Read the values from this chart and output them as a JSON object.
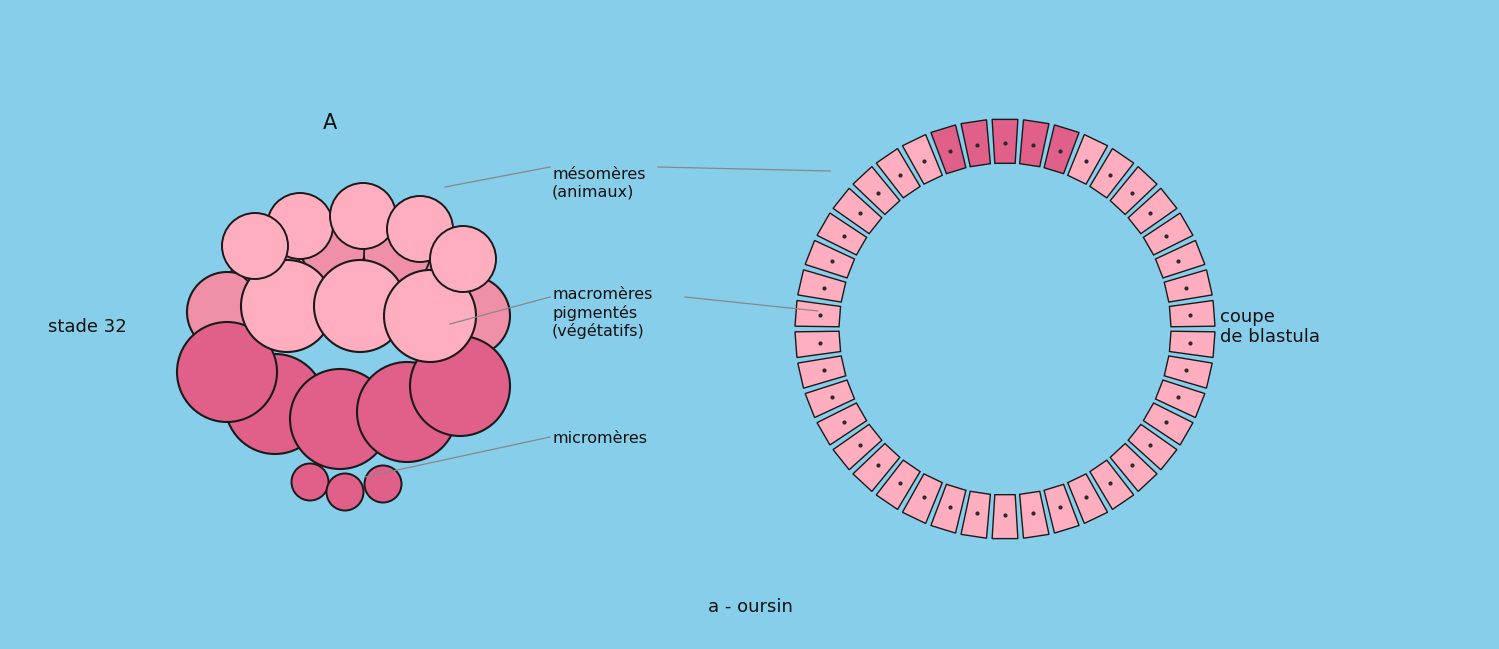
{
  "bg_color": "#87CEEB",
  "light_pink": "#FFAEC0",
  "mid_pink": "#F090A8",
  "dark_pink": "#E0608A",
  "cell_light": "#FFB8CC",
  "cell_dark": "#E87898",
  "outline_color": "#1a1a1a",
  "line_color": "#888888",
  "text_color": "#111111",
  "title_A": "A",
  "label_stade": "stade 32",
  "label_coupe": "coupe\nde blastula",
  "label_oursin": "a - oursin",
  "label_mesomeres": "mésomères\n(animaux)",
  "label_macromeres": "macromères\npigmentés\n(végétatifs)",
  "label_micromeres": "micromères",
  "fig_width": 14.99,
  "fig_height": 6.49,
  "dpi": 100
}
